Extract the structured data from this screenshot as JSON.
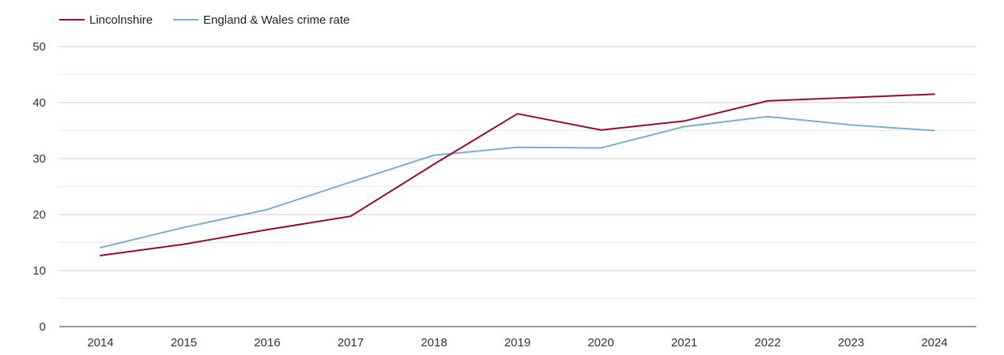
{
  "chart_data": {
    "type": "line",
    "title": "",
    "xlabel": "",
    "ylabel": "",
    "categories": [
      "2014",
      "2015",
      "2016",
      "2017",
      "2018",
      "2019",
      "2020",
      "2021",
      "2022",
      "2023",
      "2024"
    ],
    "yticks": [
      "0",
      "10",
      "20",
      "30",
      "40",
      "50"
    ],
    "ylim": [
      0,
      50
    ],
    "grid": true,
    "legend_position": "top-left",
    "series": [
      {
        "name": "Lincolnshire",
        "color": "#9b0a2e",
        "values": [
          12.7,
          14.7,
          17.3,
          19.7,
          29.0,
          38.0,
          35.1,
          36.7,
          40.3,
          40.9,
          41.5
        ]
      },
      {
        "name": "England & Wales crime rate",
        "color": "#7aafd0",
        "values": [
          14.1,
          17.7,
          20.9,
          25.8,
          30.6,
          32.0,
          31.9,
          35.7,
          37.5,
          36.0,
          35.0
        ]
      }
    ]
  }
}
